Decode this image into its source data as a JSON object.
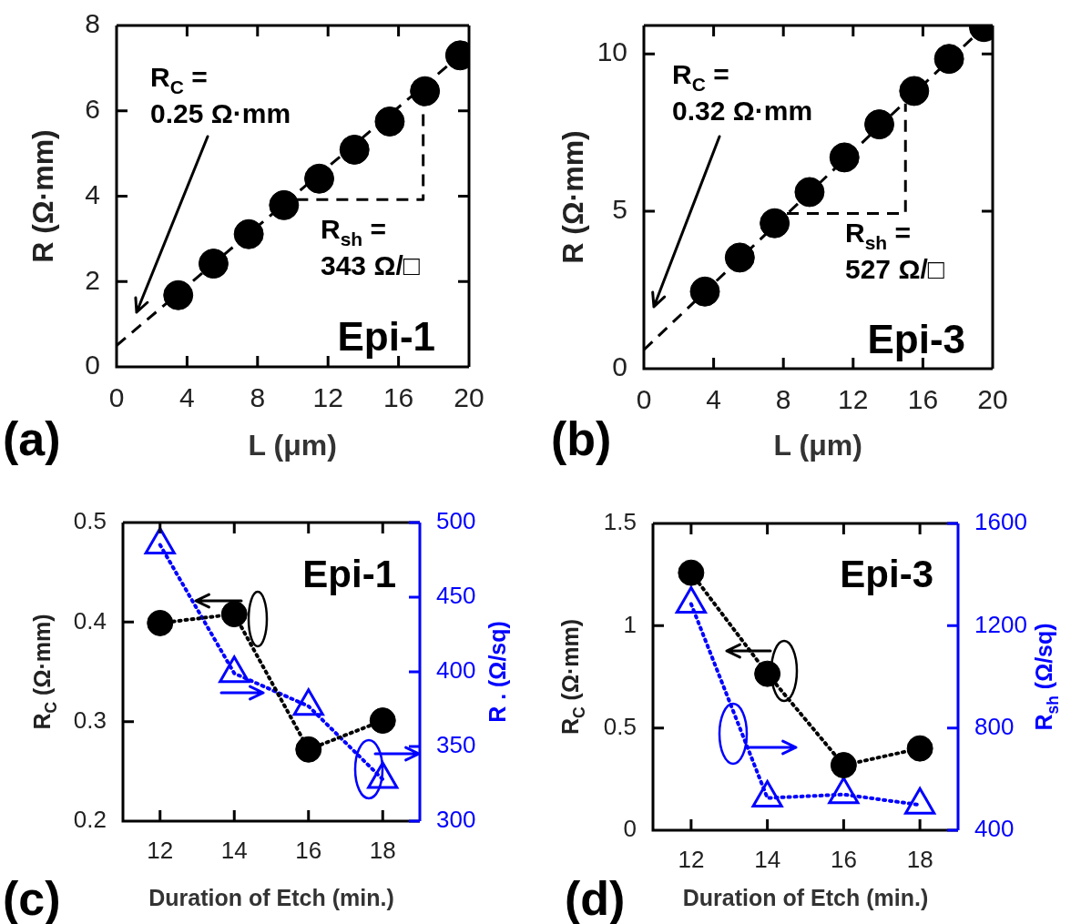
{
  "chart_data": [
    {
      "type": "scatter",
      "x": [
        3.5,
        5.5,
        7.5,
        9.5,
        11.5,
        13.5,
        15.5,
        17.5,
        19.5
      ],
      "xlim": [
        0,
        20
      ],
      "xticks": [
        0,
        4,
        8,
        12,
        16,
        20
      ],
      "ylim": [
        0,
        8
      ],
      "yticks": [
        0,
        2,
        4,
        6,
        8
      ],
      "xlabel": "L (μm)",
      "ylabel": "R (Ω·mm)",
      "series": [
        {
          "color": "#000000",
          "marker": "circle",
          "values": [
            1.68,
            2.42,
            3.11,
            3.79,
            4.41,
            5.09,
            5.75,
            6.46,
            7.3
          ]
        },
        {
          "type": "line",
          "color": "#000000",
          "marker": "none",
          "line_style": "dashed",
          "x": [
            0,
            20
          ],
          "values": [
            0.5,
            7.48
          ]
        },
        {
          "type": "line",
          "color": "#000000",
          "marker": "none",
          "line_style": "dashed",
          "x": [
            10.2,
            17.4,
            17.4
          ],
          "values": [
            3.92,
            3.92,
            6.2
          ]
        }
      ],
      "annotations": [
        "R$_{C}$ =\n0.25 Ω·mm",
        "R$_{sh}$ =\n343 Ω/□",
        "Epi-1",
        "(a)"
      ]
    },
    {
      "type": "scatter",
      "x": [
        3.5,
        5.5,
        7.5,
        9.5,
        11.5,
        13.5,
        15.5,
        17.5,
        19.5
      ],
      "xlim": [
        0,
        20
      ],
      "xticks": [
        0,
        4,
        8,
        12,
        16,
        20
      ],
      "ylim": [
        0,
        10.9
      ],
      "yticks": [
        0,
        5,
        10
      ],
      "xlabel": "L (μm)",
      "ylabel": "R (Ω·mm)",
      "series": [
        {
          "color": "#000000",
          "marker": "circle",
          "values": [
            2.45,
            3.53,
            4.62,
            5.61,
            6.71,
            7.76,
            8.82,
            9.84,
            10.85
          ]
        },
        {
          "type": "line",
          "color": "#000000",
          "marker": "none",
          "line_style": "dashed",
          "x": [
            0,
            19.5
          ],
          "values": [
            0.6,
            10.85
          ]
        },
        {
          "type": "line",
          "color": "#000000",
          "marker": "none",
          "line_style": "dashed",
          "x": [
            8.2,
            15,
            15
          ],
          "values": [
            4.93,
            4.93,
            8.42
          ]
        }
      ],
      "annotations": [
        "R$_{C}$ =\n0.32 Ω·mm",
        "R$_{sh}$ =\n527 Ω/□",
        "Epi-3",
        "(b)"
      ]
    },
    {
      "type": "line",
      "x": [
        12,
        14,
        16,
        18
      ],
      "xlim": [
        11,
        19
      ],
      "xticks": [
        12,
        14,
        16,
        18
      ],
      "ylim": [
        0.2,
        0.5
      ],
      "yticks": [
        0.2,
        0.3,
        0.4,
        0.5
      ],
      "y2lim": [
        300,
        500
      ],
      "y2ticks": [
        300,
        350,
        400,
        450,
        500
      ],
      "xlabel": "Duration of Etch (min.)",
      "ylabel": "R$_{C}$ (Ω·mm)",
      "y2label": "R . (Ω/sq)",
      "line_style": "dotted",
      "series": [
        {
          "color": "#000000",
          "marker": "circle",
          "values": [
            0.399,
            0.408,
            0.272,
            0.301
          ]
        },
        {
          "color": "#0000ff",
          "marker": "triangle",
          "axis": "y2",
          "values": [
            485,
            399,
            377,
            328
          ]
        }
      ],
      "annotations": [
        "Epi-1",
        "(c)"
      ]
    },
    {
      "type": "line",
      "x": [
        12,
        14,
        16,
        18
      ],
      "xlim": [
        11,
        19
      ],
      "xticks": [
        12,
        14,
        16,
        18
      ],
      "ylim": [
        0,
        1.5
      ],
      "yticks": [
        0,
        0.5,
        1,
        1.5
      ],
      "y2lim": [
        400,
        1600
      ],
      "y2ticks": [
        400,
        800,
        1200,
        1600
      ],
      "xlabel": "Duration of Etch (min.)",
      "ylabel": "R$_{C}$ (Ω·mm)",
      "y2label": "R$_{sh}$ (Ω/sq)",
      "line_style": "dotted",
      "series": [
        {
          "color": "#000000",
          "marker": "circle",
          "values": [
            1.259,
            0.765,
            0.318,
            0.4
          ]
        },
        {
          "color": "#0000ff",
          "marker": "triangle",
          "axis": "y2",
          "values": [
            1285,
            526,
            540,
            499
          ]
        }
      ],
      "annotations": [
        "Epi-3",
        "(d)"
      ]
    }
  ]
}
